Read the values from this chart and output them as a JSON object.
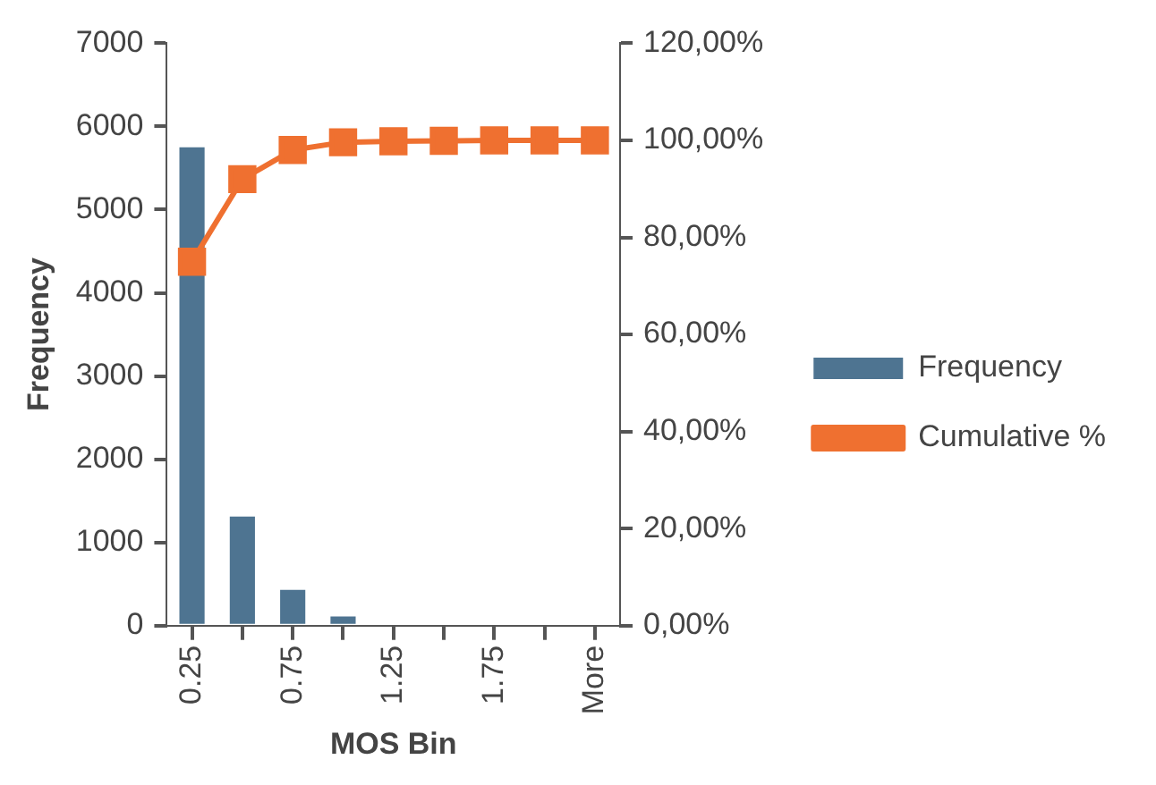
{
  "chart_data": {
    "type": "bar",
    "xlabel": "MOS Bin",
    "ylabel": "Frequency",
    "categories": [
      "0.25",
      null,
      "0.75",
      null,
      "1.25",
      null,
      "1.75",
      null,
      "More"
    ],
    "series": [
      {
        "name": "Frequency",
        "color": "#4e7491",
        "values": [
          5750,
          1310,
          430,
          110,
          0,
          0,
          0,
          0,
          0
        ]
      },
      {
        "name": "Cumulative %",
        "type": "line",
        "axis": "y2",
        "color": "#ef7030",
        "marker": "square",
        "values": [
          75,
          92,
          98,
          99.6,
          99.8,
          99.9,
          100,
          100,
          100
        ]
      }
    ],
    "ylim": [
      0,
      7000
    ],
    "yticks": [
      0,
      1000,
      2000,
      3000,
      4000,
      5000,
      6000,
      7000
    ],
    "y2lim": [
      0,
      120
    ],
    "y2ticks": [
      {
        "value": 0,
        "label": "0,00%"
      },
      {
        "value": 20,
        "label": "20,00%"
      },
      {
        "value": 40,
        "label": "40,00%"
      },
      {
        "value": 60,
        "label": "60,00%"
      },
      {
        "value": 80,
        "label": "80,00%"
      },
      {
        "value": 100,
        "label": "100,00%"
      },
      {
        "value": 120,
        "label": "120,00%"
      }
    ],
    "grid": false,
    "legend": "right"
  }
}
